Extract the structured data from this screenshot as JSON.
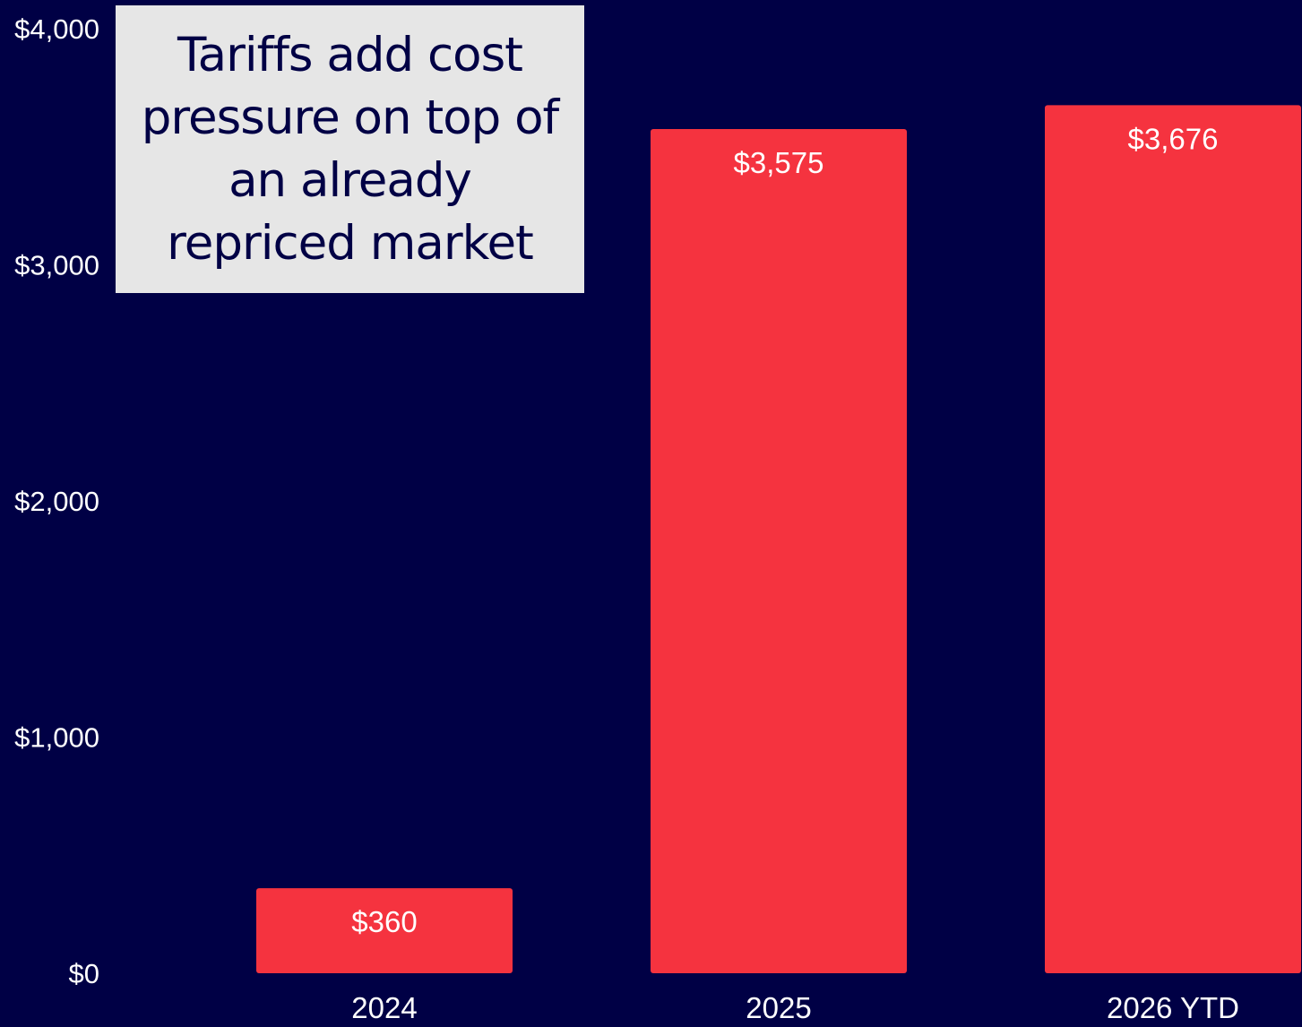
{
  "chart_data": {
    "type": "bar",
    "categories": [
      "2024",
      "2025",
      "2026 YTD"
    ],
    "values": [
      360,
      3575,
      3676
    ],
    "data_labels": [
      "$360",
      "$3,575",
      "$3,676"
    ],
    "title": "",
    "xlabel": "",
    "ylabel": "",
    "ylim": [
      0,
      4000
    ],
    "yticks": [
      {
        "value": 0,
        "label": "$0"
      },
      {
        "value": 1000,
        "label": "$1,000"
      },
      {
        "value": 2000,
        "label": "$2,000"
      },
      {
        "value": 3000,
        "label": "$3,000"
      },
      {
        "value": 4000,
        "label": "$4,000"
      }
    ],
    "grid": false,
    "legend": "none",
    "bar_color": "#f5333f",
    "background_color": "#000045",
    "label_color": "#ffffff"
  },
  "callout": {
    "lines": [
      "Tariffs add cost",
      "pressure on top of",
      "an already",
      "repriced market"
    ],
    "background": "#e6e6e6",
    "text_color": "#000045"
  }
}
